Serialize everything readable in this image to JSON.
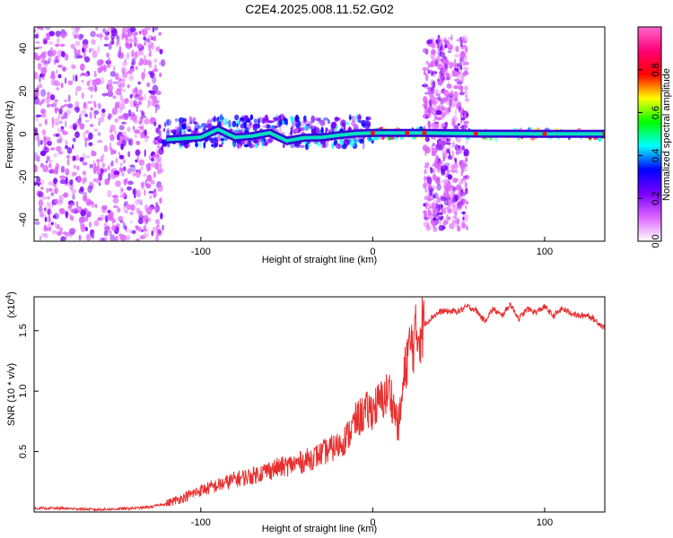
{
  "title": "C2E4.2025.008.11.52.G02",
  "chart_data": [
    {
      "type": "heatmap",
      "xlabel": "Height of straight line (km)",
      "ylabel": "Frequency (Hz)",
      "xlim": [
        -197,
        135
      ],
      "ylim": [
        -50,
        50
      ],
      "xticks": [
        -100,
        0,
        100
      ],
      "xtick_labels": [
        "-100",
        "0",
        "100"
      ],
      "yticks": [
        -40,
        -20,
        0,
        20,
        40
      ],
      "ytick_labels": [
        "-40",
        "-20",
        "0",
        "20",
        "40"
      ],
      "colorbar": {
        "label": "Normalized spectral amplitude",
        "range": [
          0,
          1
        ],
        "ticks": [
          0.0,
          0.2,
          0.4,
          0.6,
          0.8
        ],
        "tick_labels": [
          "0.0",
          "0.2",
          "0.4",
          "0.6",
          "0.8"
        ],
        "colors": [
          "#ffffff",
          "#dd66ff",
          "#7a00ff",
          "#0000ff",
          "#00ffff",
          "#00ff00",
          "#ffff00",
          "#ff0000",
          "#ff0077",
          "#ff66cc"
        ]
      },
      "regions": [
        {
          "x": [
            -197,
            -122
          ],
          "y": [
            -50,
            50
          ],
          "level": 0.2
        },
        {
          "x": [
            -122,
            0
          ],
          "y": [
            -6,
            8
          ],
          "level": 0.4
        },
        {
          "x": [
            0,
            30
          ],
          "y": [
            -2,
            2
          ],
          "level": 0.9
        },
        {
          "x": [
            30,
            55
          ],
          "y": [
            -45,
            45
          ],
          "level": 0.2
        },
        {
          "x": [
            55,
            135
          ],
          "y": [
            -2,
            2
          ],
          "level": 0.9
        }
      ],
      "ridge": [
        {
          "x": -120,
          "y": -2.6
        },
        {
          "x": -100,
          "y": -1.5
        },
        {
          "x": -90,
          "y": 2.2
        },
        {
          "x": -80,
          "y": -1.6
        },
        {
          "x": -70,
          "y": -0.9
        },
        {
          "x": -60,
          "y": 0.6
        },
        {
          "x": -50,
          "y": -3.2
        },
        {
          "x": -40,
          "y": -1.7
        },
        {
          "x": -30,
          "y": -1.6
        },
        {
          "x": -20,
          "y": -0.6
        },
        {
          "x": -10,
          "y": 0.2
        },
        {
          "x": 0,
          "y": 0.5
        },
        {
          "x": 20,
          "y": 0.5
        },
        {
          "x": 30,
          "y": 0.5
        },
        {
          "x": 60,
          "y": 0.2
        },
        {
          "x": 100,
          "y": 0.1
        },
        {
          "x": 135,
          "y": 0.1
        }
      ]
    },
    {
      "type": "line",
      "xlabel": "Height of straight line (km)",
      "ylabel": "SNR (10 * v/v)",
      "scale_label": "(x10",
      "scale_exponent": "4",
      "xlim": [
        -197,
        135
      ],
      "ylim": [
        0,
        1.78
      ],
      "xticks": [
        -100,
        0,
        100
      ],
      "xtick_labels": [
        "-100",
        "0",
        "100"
      ],
      "yticks": [
        0.5,
        1.0,
        1.5
      ],
      "ytick_labels": [
        "0.5",
        "1.0",
        "1.5"
      ],
      "color": "#e83030",
      "series": [
        {
          "x": [
            -197,
            -180,
            -160,
            -140,
            -130,
            -120,
            -110,
            -100,
            -90,
            -80,
            -70,
            -60,
            -50,
            -40,
            -30,
            -20,
            -15,
            -10,
            -5,
            0,
            5,
            10,
            15,
            20,
            25,
            30,
            35,
            40,
            45,
            50,
            55,
            60,
            65,
            70,
            75,
            80,
            85,
            90,
            95,
            100,
            105,
            110,
            115,
            120,
            125,
            130,
            135
          ],
          "y": [
            0.03,
            0.03,
            0.02,
            0.03,
            0.04,
            0.07,
            0.12,
            0.18,
            0.22,
            0.27,
            0.3,
            0.35,
            0.38,
            0.42,
            0.48,
            0.55,
            0.62,
            0.75,
            0.82,
            0.85,
            0.92,
            1.0,
            0.7,
            1.3,
            1.45,
            1.55,
            1.62,
            1.66,
            1.66,
            1.66,
            1.7,
            1.67,
            1.58,
            1.68,
            1.62,
            1.72,
            1.6,
            1.68,
            1.65,
            1.7,
            1.62,
            1.68,
            1.65,
            1.62,
            1.63,
            1.58,
            1.52
          ]
        }
      ]
    }
  ]
}
